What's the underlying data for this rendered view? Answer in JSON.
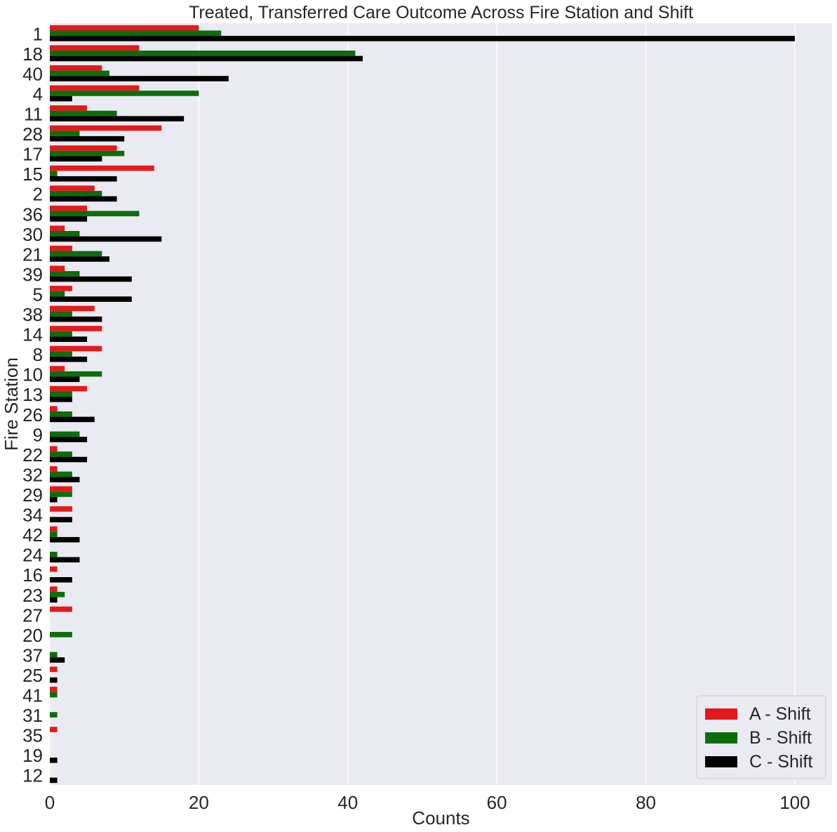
{
  "chart_data": {
    "type": "bar",
    "orientation": "horizontal",
    "title": "Treated, Transferred Care Outcome Across Fire Station and Shift",
    "xlabel": "Counts",
    "ylabel": "Fire Station",
    "xlim": [
      0,
      105
    ],
    "xticks": [
      0,
      20,
      40,
      60,
      80,
      100
    ],
    "grid": true,
    "legend_position": "bottom-right",
    "categories": [
      "1",
      "18",
      "40",
      "4",
      "11",
      "28",
      "17",
      "15",
      "2",
      "36",
      "30",
      "21",
      "39",
      "5",
      "38",
      "14",
      "8",
      "10",
      "13",
      "26",
      "9",
      "22",
      "32",
      "29",
      "34",
      "42",
      "24",
      "16",
      "23",
      "27",
      "20",
      "37",
      "25",
      "41",
      "31",
      "35",
      "19",
      "12"
    ],
    "series": [
      {
        "name": "A - Shift",
        "color": "#e31a1c",
        "values": [
          20,
          12,
          7,
          12,
          5,
          15,
          9,
          14,
          6,
          5,
          2,
          3,
          2,
          3,
          6,
          7,
          7,
          2,
          5,
          1,
          0,
          1,
          1,
          3,
          3,
          1,
          0,
          1,
          1,
          3,
          0,
          0,
          1,
          1,
          0,
          1,
          0,
          0
        ]
      },
      {
        "name": "B - Shift",
        "color": "#0b6e0b",
        "values": [
          23,
          41,
          8,
          20,
          9,
          4,
          10,
          1,
          7,
          12,
          4,
          7,
          4,
          2,
          3,
          3,
          3,
          7,
          3,
          3,
          4,
          3,
          3,
          3,
          0,
          1,
          1,
          0,
          2,
          0,
          3,
          1,
          0,
          1,
          1,
          0,
          0,
          0
        ]
      },
      {
        "name": "C - Shift",
        "color": "#000000",
        "values": [
          100,
          42,
          24,
          3,
          18,
          10,
          7,
          9,
          9,
          5,
          15,
          8,
          11,
          11,
          7,
          5,
          5,
          4,
          3,
          6,
          5,
          5,
          4,
          1,
          3,
          4,
          4,
          3,
          1,
          0,
          0,
          2,
          1,
          0,
          0,
          0,
          1,
          1
        ]
      }
    ]
  }
}
